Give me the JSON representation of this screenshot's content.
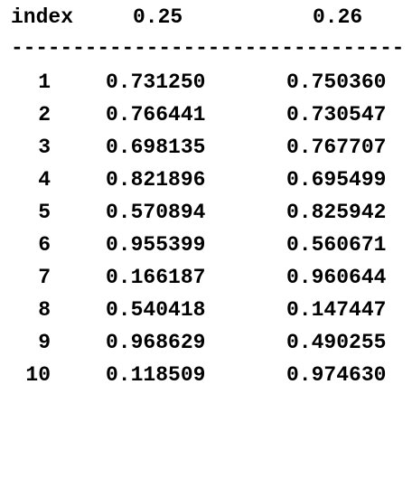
{
  "table": {
    "headers": [
      "index",
      "0.25",
      "0.26"
    ],
    "rule": "--------------------------------",
    "rows": [
      {
        "index": "1",
        "v1": "0.731250",
        "v2": "0.750360"
      },
      {
        "index": "2",
        "v1": "0.766441",
        "v2": "0.730547"
      },
      {
        "index": "3",
        "v1": "0.698135",
        "v2": "0.767707"
      },
      {
        "index": "4",
        "v1": "0.821896",
        "v2": "0.695499"
      },
      {
        "index": "5",
        "v1": "0.570894",
        "v2": "0.825942"
      },
      {
        "index": "6",
        "v1": "0.955399",
        "v2": "0.560671"
      },
      {
        "index": "7",
        "v1": "0.166187",
        "v2": "0.960644"
      },
      {
        "index": "8",
        "v1": "0.540418",
        "v2": "0.147447"
      },
      {
        "index": "9",
        "v1": "0.968629",
        "v2": "0.490255"
      },
      {
        "index": "10",
        "v1": "0.118509",
        "v2": "0.974630"
      }
    ]
  }
}
